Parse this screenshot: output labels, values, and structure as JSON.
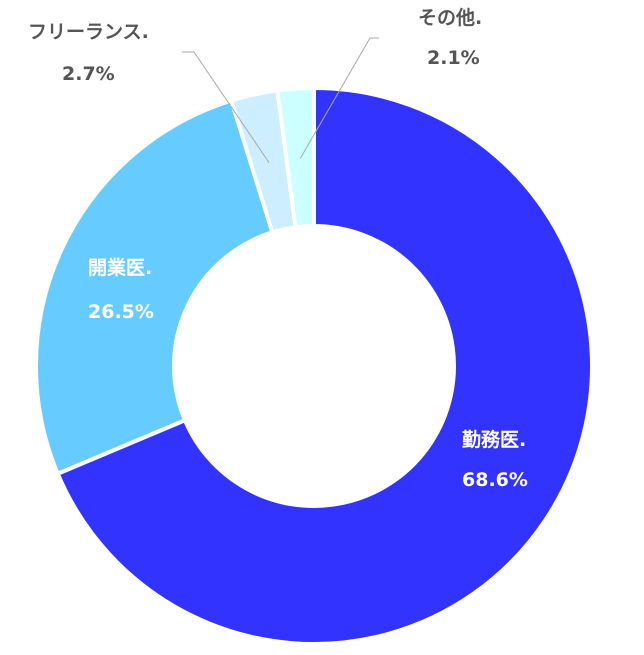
{
  "chart_data": {
    "type": "pie",
    "donut": true,
    "title": "",
    "categories": [
      "勤務医.",
      "開業医.",
      "フリーランス.",
      "その他."
    ],
    "values": [
      68.6,
      26.5,
      2.7,
      2.1
    ],
    "value_labels": [
      "68.6%",
      "26.5%",
      "2.7%",
      "2.1%"
    ],
    "unit": "%",
    "colors": [
      "#3333ff",
      "#66ccff",
      "#cceeff",
      "#ccffff"
    ],
    "label_colors": [
      "#ffffff",
      "#ffffff",
      "#555555",
      "#555555"
    ],
    "legend": "none"
  }
}
